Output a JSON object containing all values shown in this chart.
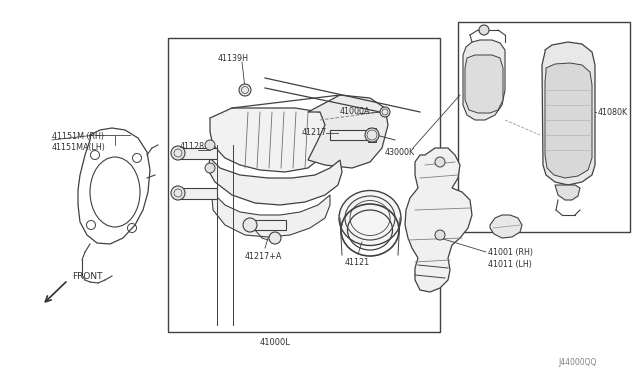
{
  "bg_color": "#ffffff",
  "fig_id": "J44000QQ",
  "lc": "#404040",
  "tc": "#303030",
  "fs": 6.0,
  "labels": {
    "41151M_RH": "41151M (RH)",
    "41151MA_LH": "41151MA(LH)",
    "41128": "41128",
    "41139H": "41139H",
    "41217": "41217",
    "41217A": "41217+A",
    "41121": "41121",
    "41000A": "41000A",
    "41000L": "41000L",
    "43000K": "43000K",
    "41080K": "41080K",
    "41001_RH": "41001 (RH)",
    "41011_LH": "41011 (LH)",
    "FRONT": "FRONT"
  }
}
